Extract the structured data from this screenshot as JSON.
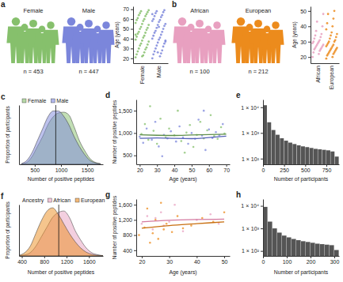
{
  "chart_data": [
    {
      "type": "pictogram",
      "title": "a",
      "categories": [
        "Female",
        "Male"
      ],
      "values": [
        453,
        447
      ],
      "value_labels": [
        "n = 453",
        "n = 447"
      ],
      "colors": [
        "#86c06c",
        "#7b86db"
      ]
    },
    {
      "type": "strip",
      "categories": [
        "Female",
        "Male"
      ],
      "colors": [
        "#86c06c",
        "#7b86db"
      ],
      "y_label": "Age (years)",
      "ylim": [
        15,
        73
      ],
      "yticks": [
        20,
        30,
        40,
        50,
        60,
        70
      ],
      "values": [
        [
          21,
          23,
          24,
          26,
          27,
          29,
          30,
          31,
          33,
          34,
          35,
          37,
          38,
          39,
          41,
          42,
          43,
          45,
          46,
          47,
          49,
          50,
          51,
          52,
          54,
          55,
          56,
          58,
          59,
          60,
          61,
          63,
          64,
          65,
          66,
          67,
          68,
          69,
          22,
          44
        ],
        [
          20,
          22,
          24,
          25,
          27,
          28,
          30,
          32,
          33,
          35,
          36,
          37,
          39,
          40,
          41,
          43,
          44,
          46,
          47,
          48,
          50,
          51,
          53,
          54,
          55,
          57,
          58,
          59,
          60,
          62,
          63,
          64,
          66,
          67,
          68,
          69,
          26,
          38,
          52,
          65
        ]
      ]
    },
    {
      "type": "pictogram",
      "title": "b",
      "categories": [
        "African",
        "European"
      ],
      "values": [
        100,
        212
      ],
      "value_labels": [
        "n = 100",
        "n = 212"
      ],
      "colors": [
        "#e8a0c0",
        "#ec8b1c"
      ]
    },
    {
      "type": "strip",
      "categories": [
        "African",
        "European"
      ],
      "colors": [
        "#e8a0c0",
        "#ec8b1c"
      ],
      "y_label": "Age (years)",
      "ylim": [
        16,
        53
      ],
      "yticks": [
        20,
        30,
        40,
        50
      ],
      "values": [
        [
          20,
          22,
          23,
          24,
          25,
          25,
          26,
          26,
          27,
          27,
          28,
          28,
          29,
          29,
          30,
          30,
          31,
          32,
          33,
          34,
          35,
          37,
          40,
          43,
          48
        ],
        [
          19,
          20,
          21,
          22,
          22,
          23,
          23,
          24,
          24,
          25,
          25,
          26,
          26,
          27,
          27,
          28,
          28,
          29,
          30,
          30,
          31,
          32,
          33,
          34,
          35,
          36,
          38,
          40,
          42,
          45,
          48,
          50
        ]
      ]
    },
    {
      "type": "area",
      "title": "c",
      "x_label": "Number of positive peptides",
      "y_label": "Proportion of participants",
      "tick_labels": "x",
      "legend": "top",
      "xlim": [
        200,
        1800
      ],
      "xticks": [
        500,
        1000,
        1500
      ],
      "ylim": [
        0,
        0.0015
      ],
      "reference_line": 900,
      "series": [
        {
          "name": "Female",
          "color": "#86c06c",
          "x": [
            250,
            350,
            450,
            550,
            650,
            750,
            850,
            950,
            1050,
            1150,
            1250,
            1350,
            1450,
            1550,
            1650,
            1750
          ],
          "values": [
            1e-05,
            5e-05,
            0.0002,
            0.00045,
            0.0007,
            0.001,
            0.0012,
            0.0013,
            0.00132,
            0.00125,
            0.00095,
            0.0006,
            0.00035,
            0.00015,
            5e-05,
            2e-05
          ]
        },
        {
          "name": "Male",
          "color": "#7b86db",
          "x": [
            250,
            350,
            450,
            550,
            650,
            750,
            850,
            950,
            1050,
            1150,
            1250,
            1350,
            1450,
            1550,
            1650,
            1750
          ],
          "values": [
            2e-05,
            0.0001,
            0.0003,
            0.0006,
            0.0009,
            0.0012,
            0.00135,
            0.00135,
            0.00122,
            0.001,
            0.0007,
            0.00045,
            0.00025,
            0.0001,
            4e-05,
            1e-05
          ]
        }
      ]
    },
    {
      "type": "scatter",
      "title": "d",
      "x_label": "Age (years)",
      "y_label": "Number of positive peptides",
      "xlim": [
        18,
        72
      ],
      "xticks": [
        20,
        30,
        40,
        50,
        60,
        70
      ],
      "ylim": [
        300,
        1750
      ],
      "yticks": [
        500,
        {
          "value": 1000,
          "label": "1,000"
        },
        {
          "value": 1500,
          "label": "1,500"
        }
      ],
      "series": [
        {
          "type": "scatter",
          "color": "#86c06c",
          "x": [
            21,
            23,
            25,
            28,
            30,
            32,
            35,
            37,
            40,
            42,
            44,
            47,
            49,
            51,
            53,
            55,
            57,
            59,
            61,
            63,
            65,
            67,
            69,
            26,
            46
          ],
          "values": [
            980,
            1200,
            850,
            1050,
            760,
            1320,
            900,
            1100,
            950,
            1500,
            820,
            1010,
            1180,
            690,
            960,
            1250,
            880,
            1060,
            1400,
            930,
            870,
            1130,
            990,
            1600,
            560
          ]
        },
        {
          "type": "scatter",
          "color": "#7b86db",
          "x": [
            20,
            22,
            24,
            27,
            29,
            31,
            34,
            36,
            38,
            41,
            43,
            45,
            48,
            50,
            52,
            54,
            56,
            58,
            60,
            62,
            64,
            66,
            68,
            33,
            57
          ],
          "values": [
            920,
            780,
            1100,
            850,
            1250,
            700,
            960,
            880,
            1040,
            810,
            1150,
            900,
            760,
            1000,
            870,
            1300,
            940,
            620,
            1080,
            890,
            1020,
            950,
            1200,
            480,
            1500
          ]
        },
        {
          "type": "line",
          "color": "#5f8f4a",
          "x": [
            20,
            30,
            40,
            50,
            60,
            70
          ],
          "values": [
            960,
            950,
            945,
            955,
            965,
            975
          ]
        },
        {
          "type": "line",
          "color": "#5561b8",
          "x": [
            20,
            30,
            40,
            50,
            60,
            70
          ],
          "values": [
            880,
            890,
            880,
            875,
            900,
            930
          ]
        }
      ]
    },
    {
      "type": "histogram",
      "title": "e",
      "x_label": "Number of participants",
      "log": "y",
      "color": "#555555",
      "bins": [
        0,
        50,
        100,
        150,
        200,
        250,
        300,
        350,
        400,
        450,
        500,
        550,
        600,
        650,
        700,
        750,
        800,
        850,
        900
      ],
      "values": [
        12000,
        2600,
        1300,
        850,
        620,
        500,
        420,
        370,
        330,
        300,
        280,
        260,
        240,
        230,
        220,
        210,
        190,
        120
      ],
      "xlim": [
        0,
        900
      ],
      "xticks": [
        0,
        250,
        500,
        750
      ],
      "ylim": [
        60,
        20000
      ],
      "yticks": [
        {
          "value": 100,
          "label": "1 × 10²"
        },
        {
          "value": 1000,
          "label": "1 × 10³"
        },
        {
          "value": 10000,
          "label": "1 × 10⁴"
        }
      ]
    },
    {
      "type": "area",
      "title": "f",
      "x_label": "Number of positive peptides",
      "y_label": "Proportion of participants",
      "tick_labels": "x",
      "legend": "top",
      "legend_title": "Ancestry",
      "xlim": [
        350,
        1850
      ],
      "xticks": [
        400,
        800,
        1200,
        1600
      ],
      "ylim": [
        0,
        0.0016
      ],
      "reference_line": 1060,
      "series": [
        {
          "name": "African",
          "color": "#e8a0c0",
          "x": [
            350,
            450,
            550,
            650,
            750,
            850,
            950,
            1050,
            1150,
            1250,
            1350,
            1450,
            1550,
            1650,
            1750,
            1850
          ],
          "values": [
            1e-05,
            3e-05,
            0.0001,
            0.0003,
            0.0006,
            0.0009,
            0.0012,
            0.00135,
            0.0014,
            0.0012,
            0.0008,
            0.0005,
            0.00025,
            0.0001,
            4e-05,
            1e-05
          ]
        },
        {
          "name": "European",
          "color": "#ec8b1c",
          "x": [
            350,
            450,
            550,
            650,
            750,
            850,
            950,
            1050,
            1150,
            1250,
            1350,
            1450,
            1550,
            1650,
            1750,
            1850
          ],
          "values": [
            2e-05,
            0.0001,
            0.0003,
            0.0007,
            0.0011,
            0.0014,
            0.0015,
            0.0013,
            0.001,
            0.0007,
            0.00045,
            0.00025,
            0.00012,
            5e-05,
            2e-05,
            1e-05
          ]
        }
      ]
    },
    {
      "type": "scatter",
      "title": "g",
      "x_label": "Age (years)",
      "y_label": "Number of positive peptides",
      "xlim": [
        18,
        52
      ],
      "xticks": [
        20,
        30,
        40,
        50
      ],
      "ylim": [
        250,
        1750
      ],
      "yticks": [
        400,
        800,
        {
          "value": 1200,
          "label": "1,200"
        },
        {
          "value": 1600,
          "label": "1,600"
        }
      ],
      "series": [
        {
          "type": "scatter",
          "color": "#e8a0c0",
          "x": [
            20,
            22,
            24,
            25,
            27,
            28,
            30,
            32,
            35,
            40,
            45,
            48
          ],
          "values": [
            1100,
            1300,
            950,
            1250,
            1400,
            1050,
            1150,
            1600,
            900,
            1200,
            1350,
            1100
          ]
        },
        {
          "type": "scatter",
          "color": "#ec8b1c",
          "x": [
            19,
            21,
            22,
            24,
            25,
            26,
            28,
            29,
            31,
            33,
            35,
            38,
            42,
            46,
            50,
            23,
            27
          ],
          "values": [
            800,
            1000,
            1500,
            850,
            1200,
            700,
            950,
            1100,
            880,
            1300,
            980,
            1050,
            1250,
            1150,
            1400,
            600,
            1650
          ]
        },
        {
          "type": "line",
          "color": "#d47aa0",
          "x": [
            20,
            30,
            40,
            50
          ],
          "values": [
            1150,
            1190,
            1210,
            1220
          ]
        },
        {
          "type": "line",
          "color": "#c86e10",
          "x": [
            20,
            30,
            40,
            50
          ],
          "values": [
            980,
            1050,
            1100,
            1150
          ]
        }
      ]
    },
    {
      "type": "histogram",
      "title": "h",
      "x_label": "Number of participants",
      "log": "y",
      "color": "#555555",
      "bins": [
        0,
        20,
        40,
        60,
        80,
        100,
        120,
        140,
        160,
        180,
        200,
        220,
        240,
        260,
        280,
        300,
        320
      ],
      "values": [
        9000,
        2000,
        1000,
        650,
        480,
        400,
        340,
        300,
        270,
        250,
        230,
        210,
        200,
        190,
        180,
        110
      ],
      "xlim": [
        0,
        320
      ],
      "xticks": [
        0,
        100,
        200,
        300
      ],
      "ylim": [
        60,
        20000
      ],
      "yticks": [
        {
          "value": 100,
          "label": "1 × 10²"
        },
        {
          "value": 1000,
          "label": "1 × 10³"
        },
        {
          "value": 10000,
          "label": "1 × 10⁴"
        }
      ]
    }
  ]
}
